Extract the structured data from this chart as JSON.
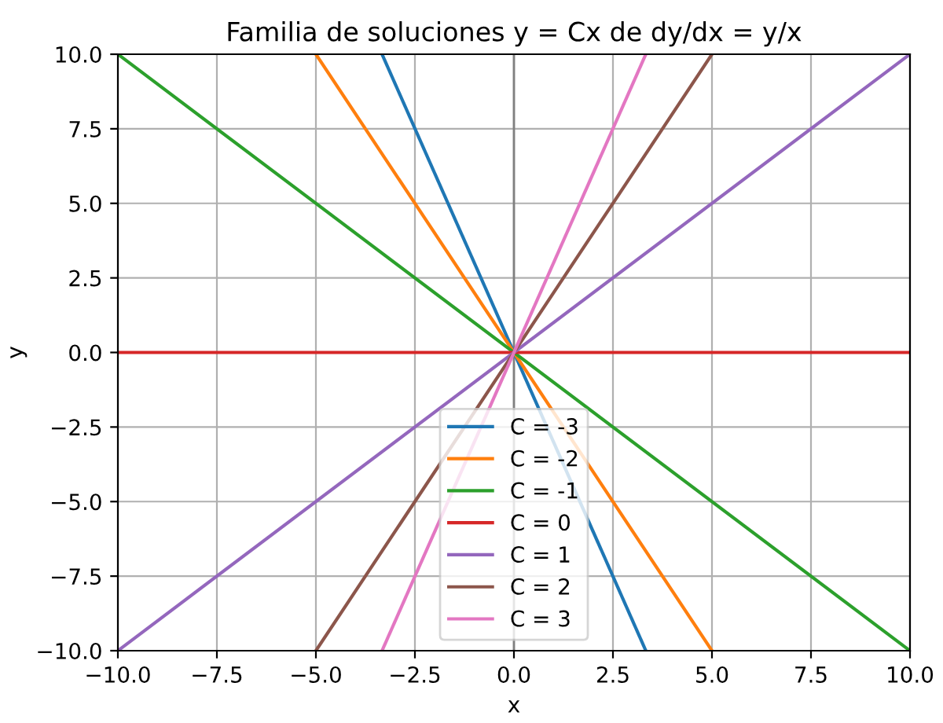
{
  "chart_data": {
    "type": "line",
    "title": "Familia de soluciones y = Cx de dy/dx = y/x",
    "xlabel": "x",
    "ylabel": "y",
    "xlim": [
      -10,
      10
    ],
    "ylim": [
      -10,
      10
    ],
    "xticks": [
      {
        "value": -10,
        "label": "−10.0"
      },
      {
        "value": -7.5,
        "label": "−7.5"
      },
      {
        "value": -5,
        "label": "−5.0"
      },
      {
        "value": -2.5,
        "label": "−2.5"
      },
      {
        "value": 0,
        "label": "0.0"
      },
      {
        "value": 2.5,
        "label": "2.5"
      },
      {
        "value": 5,
        "label": "5.0"
      },
      {
        "value": 7.5,
        "label": "7.5"
      },
      {
        "value": 10,
        "label": "10.0"
      }
    ],
    "yticks": [
      {
        "value": -10,
        "label": "−10.0"
      },
      {
        "value": -7.5,
        "label": "−7.5"
      },
      {
        "value": -5,
        "label": "−5.0"
      },
      {
        "value": -2.5,
        "label": "−2.5"
      },
      {
        "value": 0,
        "label": "0.0"
      },
      {
        "value": 2.5,
        "label": "2.5"
      },
      {
        "value": 5,
        "label": "5.0"
      },
      {
        "value": 7.5,
        "label": "7.5"
      },
      {
        "value": 10,
        "label": "10.0"
      }
    ],
    "grid": true,
    "legend": "bottom",
    "ref_lines": [
      {
        "axis": "x",
        "value": 0,
        "color": "#808080"
      }
    ],
    "series": [
      {
        "name": "C = -3",
        "color": "#1f77b4",
        "x": [
          -3.33,
          3.33
        ],
        "values": [
          10,
          -10
        ]
      },
      {
        "name": "C = -2",
        "color": "#ff7f0e",
        "x": [
          -5,
          5
        ],
        "values": [
          10,
          -10
        ]
      },
      {
        "name": "C = -1",
        "color": "#2ca02c",
        "x": [
          -10,
          10
        ],
        "values": [
          10,
          -10
        ]
      },
      {
        "name": "C = 0",
        "color": "#d62728",
        "x": [
          -10,
          10
        ],
        "values": [
          0,
          0
        ]
      },
      {
        "name": "C = 1",
        "color": "#9467bd",
        "x": [
          -10,
          10
        ],
        "values": [
          -10,
          10
        ]
      },
      {
        "name": "C = 2",
        "color": "#8c564b",
        "x": [
          -5,
          5
        ],
        "values": [
          -10,
          10
        ]
      },
      {
        "name": "C = 3",
        "color": "#e377c2",
        "x": [
          -3.33,
          3.33
        ],
        "values": [
          -10,
          10
        ]
      }
    ]
  }
}
